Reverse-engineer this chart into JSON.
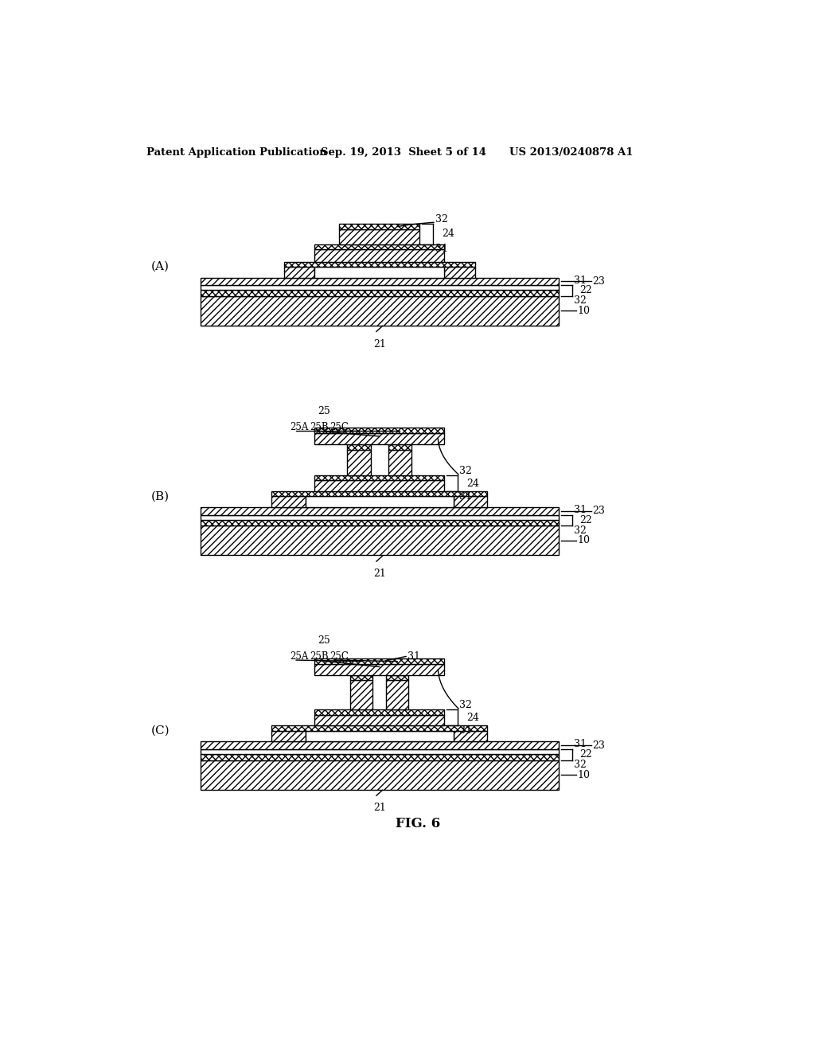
{
  "header_left": "Patent Application Publication",
  "header_mid": "Sep. 19, 2013  Sheet 5 of 14",
  "header_right": "US 2013/0240878 A1",
  "figure_label": "FIG. 6",
  "bg_color": "#ffffff",
  "line_color": "#000000"
}
